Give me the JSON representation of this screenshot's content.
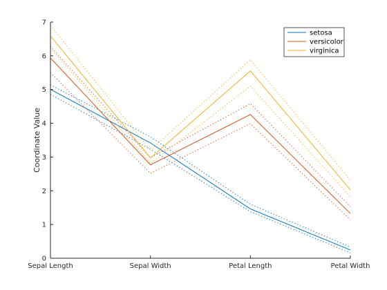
{
  "chart_data": {
    "type": "line",
    "subtype": "parallel-coordinates",
    "title": "",
    "xlabel": "",
    "ylabel": "Coordinate Value",
    "categories": [
      "Sepal Length",
      "Sepal Width",
      "Petal Length",
      "Petal Width"
    ],
    "ylim": [
      0,
      7
    ],
    "yticks": [
      "0",
      "1",
      "2",
      "3",
      "4",
      "5",
      "6",
      "7"
    ],
    "grid": false,
    "legend_position": "top-right",
    "series": [
      {
        "name": "setosa",
        "color": "#0072BD",
        "values": [
          5.006,
          3.418,
          1.464,
          0.244
        ],
        "upper": [
          5.14,
          3.6,
          1.6,
          0.33
        ],
        "lower": [
          4.86,
          3.23,
          1.38,
          0.16
        ]
      },
      {
        "name": "versicolor",
        "color": "#D95319",
        "values": [
          5.936,
          2.77,
          4.26,
          1.326
        ],
        "upper": [
          6.28,
          2.98,
          4.58,
          1.53
        ],
        "lower": [
          5.5,
          2.52,
          3.99,
          1.14
        ]
      },
      {
        "name": "virginica",
        "color": "#EDB120",
        "values": [
          6.588,
          2.974,
          5.552,
          2.026
        ],
        "upper": [
          6.9,
          3.2,
          5.88,
          2.32
        ],
        "lower": [
          6.23,
          2.81,
          5.1,
          1.82
        ]
      }
    ]
  }
}
